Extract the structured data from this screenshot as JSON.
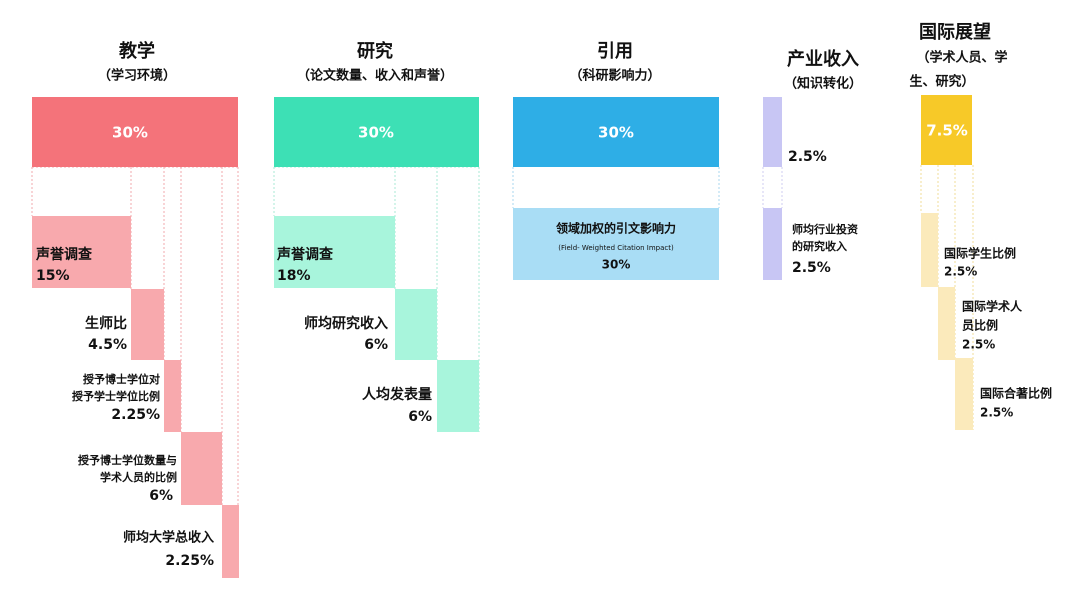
{
  "columns": [
    {
      "title": "教学",
      "subtitle": [
        "（学习环境）"
      ],
      "weight": "30%",
      "items": [
        {
          "label": [
            "声誉调查"
          ],
          "weight": "15%"
        },
        {
          "label": [
            "生师比"
          ],
          "weight": "4.5%"
        },
        {
          "label": [
            "授予博士学位对",
            "授予学士学位比例"
          ],
          "weight": "2.25%"
        },
        {
          "label": [
            "授予博士学位数量与",
            "学术人员的比例"
          ],
          "weight": "6%"
        },
        {
          "label": [
            "师均大学总收入"
          ],
          "weight": "2.25%"
        }
      ]
    },
    {
      "title": "研究",
      "subtitle": [
        "（论文数量、收入和声誉）"
      ],
      "weight": "30%",
      "items": [
        {
          "label": [
            "声誉调查"
          ],
          "weight": "18%"
        },
        {
          "label": [
            "师均研究收入"
          ],
          "weight": "6%"
        },
        {
          "label": [
            "人均发表量"
          ],
          "weight": "6%"
        }
      ]
    },
    {
      "title": "引用",
      "subtitle": [
        "（科研影响力）"
      ],
      "weight": "30%",
      "items": [
        {
          "label": [
            "领域加权的引文影响力",
            "(Field- Weighted Citation Impact)"
          ],
          "weight": "30%"
        }
      ]
    },
    {
      "title": "产业收入",
      "subtitle": [
        "（知识转化）"
      ],
      "weight": "2.5%",
      "items": [
        {
          "label": [
            "师均行业投资",
            "的研究收入"
          ],
          "weight": "2.5%"
        }
      ]
    },
    {
      "title": "国际展望",
      "subtitle": [
        "（学术人员、学",
        "生、研究）"
      ],
      "weight": "7.5%",
      "items": [
        {
          "label": [
            "国际学生比例"
          ],
          "weight": "2.5%"
        },
        {
          "label": [
            "国际学术人",
            "员比例"
          ],
          "weight": "2.5%"
        },
        {
          "label": [
            "国际合著比例"
          ],
          "weight": "2.5%"
        }
      ]
    }
  ]
}
